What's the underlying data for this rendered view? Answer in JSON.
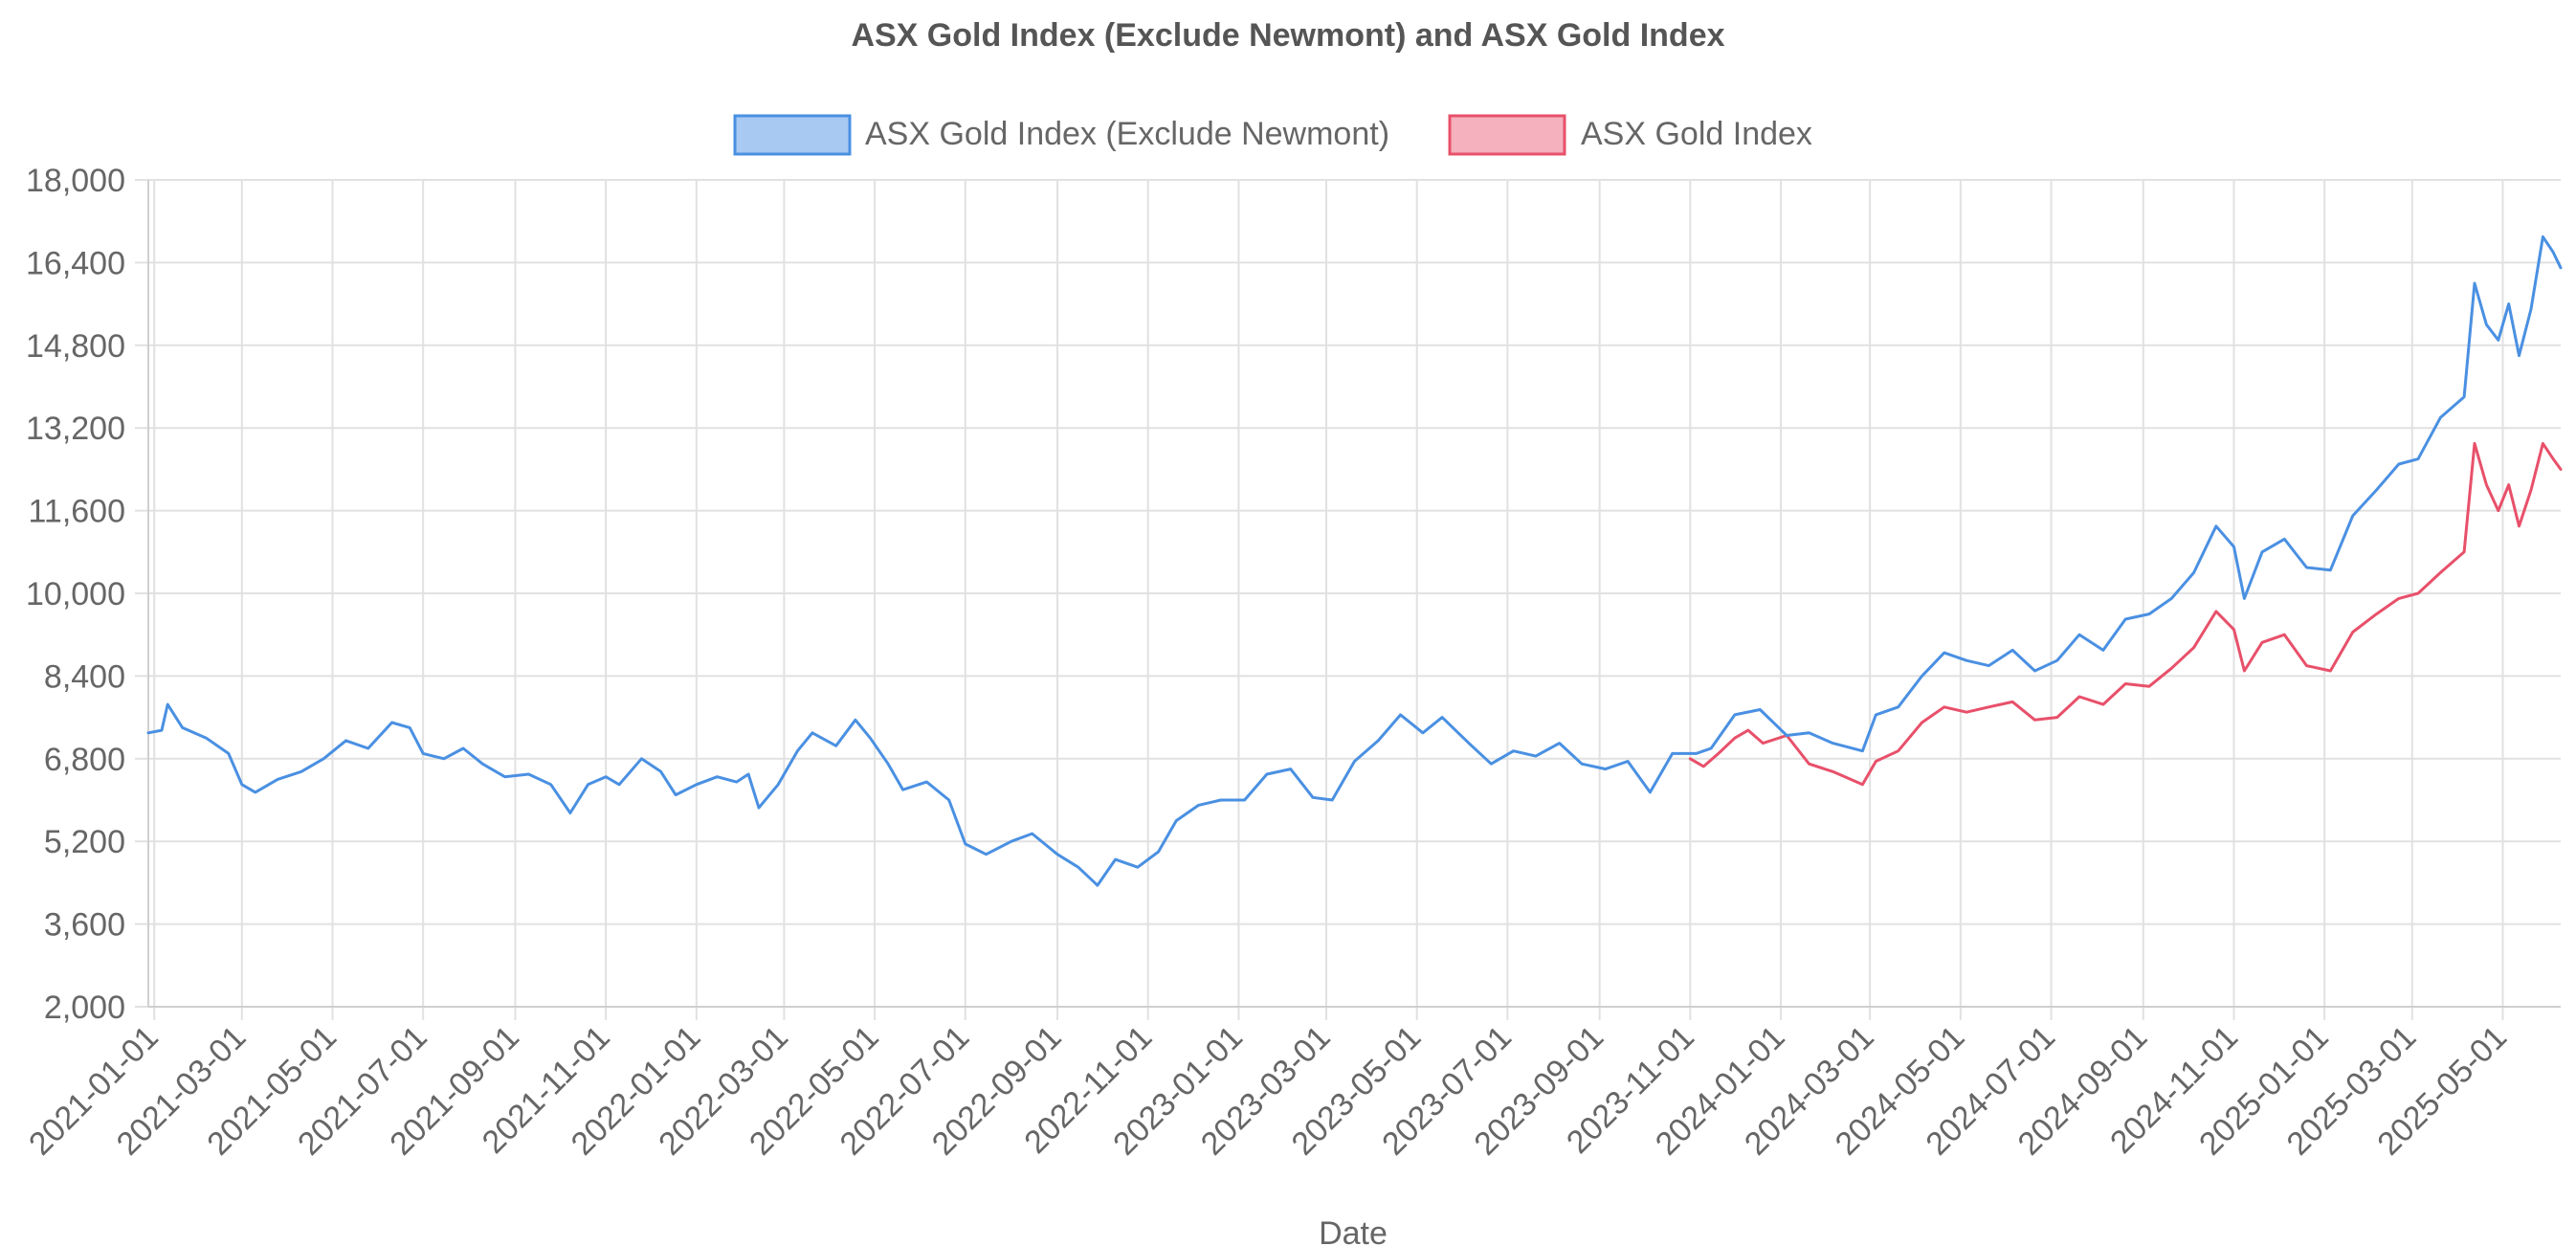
{
  "chart_data": {
    "type": "line",
    "title": "ASX Gold Index (Exclude Newmont) and ASX Gold Index",
    "xlabel": "Date",
    "ylabel": "",
    "ylim": [
      2000,
      18000
    ],
    "ytick_step": 1600,
    "ytick_labels": [
      "2,000",
      "3,600",
      "5,200",
      "6,800",
      "8,400",
      "10,000",
      "11,600",
      "13,200",
      "14,800",
      "16,400",
      "18,000"
    ],
    "x_ticks": [
      "2021-01-01",
      "2021-03-01",
      "2021-05-01",
      "2021-07-01",
      "2021-09-01",
      "2021-11-01",
      "2022-01-01",
      "2022-03-01",
      "2022-05-01",
      "2022-07-01",
      "2022-09-01",
      "2022-11-01",
      "2023-01-01",
      "2023-03-01",
      "2023-05-01",
      "2023-07-01",
      "2023-09-01",
      "2023-11-01",
      "2024-01-01",
      "2024-03-01",
      "2024-05-01",
      "2024-07-01",
      "2024-09-01",
      "2024-11-01",
      "2025-01-01",
      "2025-03-01",
      "2025-05-01"
    ],
    "x_range": [
      "2020-12-28",
      "2025-06-09"
    ],
    "grid": true,
    "legend_position": "top",
    "series": [
      {
        "name": "ASX Gold Index (Exclude Newmont)",
        "color": "#4a90e2",
        "fill": "#a7c9f2",
        "points": [
          [
            "2020-12-28",
            7300
          ],
          [
            "2021-01-06",
            7350
          ],
          [
            "2021-01-10",
            7850
          ],
          [
            "2021-01-20",
            7400
          ],
          [
            "2021-02-05",
            7200
          ],
          [
            "2021-02-20",
            6900
          ],
          [
            "2021-03-01",
            6300
          ],
          [
            "2021-03-10",
            6150
          ],
          [
            "2021-03-25",
            6400
          ],
          [
            "2021-04-10",
            6550
          ],
          [
            "2021-04-25",
            6800
          ],
          [
            "2021-05-10",
            7150
          ],
          [
            "2021-05-25",
            7000
          ],
          [
            "2021-06-10",
            7500
          ],
          [
            "2021-06-22",
            7400
          ],
          [
            "2021-07-01",
            6900
          ],
          [
            "2021-07-15",
            6800
          ],
          [
            "2021-07-28",
            7000
          ],
          [
            "2021-08-10",
            6700
          ],
          [
            "2021-08-25",
            6450
          ],
          [
            "2021-09-10",
            6500
          ],
          [
            "2021-09-25",
            6300
          ],
          [
            "2021-10-08",
            5750
          ],
          [
            "2021-10-20",
            6300
          ],
          [
            "2021-11-01",
            6450
          ],
          [
            "2021-11-10",
            6300
          ],
          [
            "2021-11-25",
            6800
          ],
          [
            "2021-12-08",
            6550
          ],
          [
            "2021-12-18",
            6100
          ],
          [
            "2022-01-01",
            6300
          ],
          [
            "2022-01-15",
            6450
          ],
          [
            "2022-01-28",
            6350
          ],
          [
            "2022-02-05",
            6500
          ],
          [
            "2022-02-12",
            5850
          ],
          [
            "2022-02-25",
            6300
          ],
          [
            "2022-03-10",
            6950
          ],
          [
            "2022-03-20",
            7300
          ],
          [
            "2022-04-05",
            7050
          ],
          [
            "2022-04-18",
            7550
          ],
          [
            "2022-04-28",
            7200
          ],
          [
            "2022-05-10",
            6700
          ],
          [
            "2022-05-20",
            6200
          ],
          [
            "2022-06-05",
            6350
          ],
          [
            "2022-06-20",
            6000
          ],
          [
            "2022-07-01",
            5150
          ],
          [
            "2022-07-15",
            4950
          ],
          [
            "2022-08-01",
            5200
          ],
          [
            "2022-08-15",
            5350
          ],
          [
            "2022-09-01",
            4950
          ],
          [
            "2022-09-15",
            4700
          ],
          [
            "2022-09-28",
            4350
          ],
          [
            "2022-10-10",
            4850
          ],
          [
            "2022-10-25",
            4700
          ],
          [
            "2022-11-08",
            5000
          ],
          [
            "2022-11-20",
            5600
          ],
          [
            "2022-12-05",
            5900
          ],
          [
            "2022-12-20",
            6000
          ],
          [
            "2023-01-05",
            6000
          ],
          [
            "2023-01-20",
            6500
          ],
          [
            "2023-02-05",
            6600
          ],
          [
            "2023-02-20",
            6050
          ],
          [
            "2023-03-05",
            6000
          ],
          [
            "2023-03-20",
            6750
          ],
          [
            "2023-04-05",
            7150
          ],
          [
            "2023-04-20",
            7650
          ],
          [
            "2023-05-05",
            7300
          ],
          [
            "2023-05-18",
            7600
          ],
          [
            "2023-06-05",
            7100
          ],
          [
            "2023-06-20",
            6700
          ],
          [
            "2023-07-05",
            6950
          ],
          [
            "2023-07-20",
            6850
          ],
          [
            "2023-08-05",
            7100
          ],
          [
            "2023-08-20",
            6700
          ],
          [
            "2023-09-05",
            6600
          ],
          [
            "2023-09-20",
            6750
          ],
          [
            "2023-10-05",
            6150
          ],
          [
            "2023-10-20",
            6900
          ],
          [
            "2023-11-05",
            6900
          ],
          [
            "2023-11-15",
            7000
          ],
          [
            "2023-12-01",
            7650
          ],
          [
            "2023-12-18",
            7750
          ],
          [
            "2024-01-05",
            7250
          ],
          [
            "2024-01-20",
            7300
          ],
          [
            "2024-02-05",
            7100
          ],
          [
            "2024-02-25",
            6950
          ],
          [
            "2024-03-05",
            7650
          ],
          [
            "2024-03-20",
            7800
          ],
          [
            "2024-04-05",
            8400
          ],
          [
            "2024-04-20",
            8850
          ],
          [
            "2024-05-05",
            8700
          ],
          [
            "2024-05-20",
            8600
          ],
          [
            "2024-06-05",
            8900
          ],
          [
            "2024-06-20",
            8500
          ],
          [
            "2024-07-05",
            8700
          ],
          [
            "2024-07-20",
            9200
          ],
          [
            "2024-08-05",
            8900
          ],
          [
            "2024-08-20",
            9500
          ],
          [
            "2024-09-05",
            9600
          ],
          [
            "2024-09-20",
            9900
          ],
          [
            "2024-10-05",
            10400
          ],
          [
            "2024-10-20",
            11300
          ],
          [
            "2024-11-01",
            10900
          ],
          [
            "2024-11-08",
            9900
          ],
          [
            "2024-11-20",
            10800
          ],
          [
            "2024-12-05",
            11050
          ],
          [
            "2024-12-20",
            10500
          ],
          [
            "2025-01-05",
            10450
          ],
          [
            "2025-01-20",
            11500
          ],
          [
            "2025-02-05",
            12000
          ],
          [
            "2025-02-20",
            12500
          ],
          [
            "2025-03-05",
            12600
          ],
          [
            "2025-03-20",
            13400
          ],
          [
            "2025-04-05",
            13800
          ],
          [
            "2025-04-12",
            16000
          ],
          [
            "2025-04-20",
            15200
          ],
          [
            "2025-04-28",
            14900
          ],
          [
            "2025-05-05",
            15600
          ],
          [
            "2025-05-12",
            14600
          ],
          [
            "2025-05-20",
            15500
          ],
          [
            "2025-05-28",
            16900
          ],
          [
            "2025-06-04",
            16600
          ],
          [
            "2025-06-09",
            16300
          ]
        ]
      },
      {
        "name": "ASX Gold Index",
        "color": "#e8506a",
        "fill": "#f5b1bd",
        "points": [
          [
            "2023-11-01",
            6800
          ],
          [
            "2023-11-10",
            6650
          ],
          [
            "2023-11-20",
            6900
          ],
          [
            "2023-12-01",
            7200
          ],
          [
            "2023-12-10",
            7350
          ],
          [
            "2023-12-20",
            7100
          ],
          [
            "2024-01-05",
            7250
          ],
          [
            "2024-01-20",
            6700
          ],
          [
            "2024-02-05",
            6550
          ],
          [
            "2024-02-25",
            6300
          ],
          [
            "2024-03-05",
            6750
          ],
          [
            "2024-03-20",
            6950
          ],
          [
            "2024-04-05",
            7500
          ],
          [
            "2024-04-20",
            7800
          ],
          [
            "2024-05-05",
            7700
          ],
          [
            "2024-05-20",
            7800
          ],
          [
            "2024-06-05",
            7900
          ],
          [
            "2024-06-20",
            7550
          ],
          [
            "2024-07-05",
            7600
          ],
          [
            "2024-07-20",
            8000
          ],
          [
            "2024-08-05",
            7850
          ],
          [
            "2024-08-20",
            8250
          ],
          [
            "2024-09-05",
            8200
          ],
          [
            "2024-09-20",
            8550
          ],
          [
            "2024-10-05",
            8950
          ],
          [
            "2024-10-20",
            9650
          ],
          [
            "2024-11-01",
            9300
          ],
          [
            "2024-11-08",
            8500
          ],
          [
            "2024-11-20",
            9050
          ],
          [
            "2024-12-05",
            9200
          ],
          [
            "2024-12-20",
            8600
          ],
          [
            "2025-01-05",
            8500
          ],
          [
            "2025-01-20",
            9250
          ],
          [
            "2025-02-05",
            9600
          ],
          [
            "2025-02-20",
            9900
          ],
          [
            "2025-03-05",
            10000
          ],
          [
            "2025-03-20",
            10400
          ],
          [
            "2025-04-05",
            10800
          ],
          [
            "2025-04-12",
            12900
          ],
          [
            "2025-04-20",
            12100
          ],
          [
            "2025-04-28",
            11600
          ],
          [
            "2025-05-05",
            12100
          ],
          [
            "2025-05-12",
            11300
          ],
          [
            "2025-05-20",
            12000
          ],
          [
            "2025-05-28",
            12900
          ],
          [
            "2025-06-04",
            12600
          ],
          [
            "2025-06-09",
            12400
          ]
        ]
      }
    ]
  }
}
